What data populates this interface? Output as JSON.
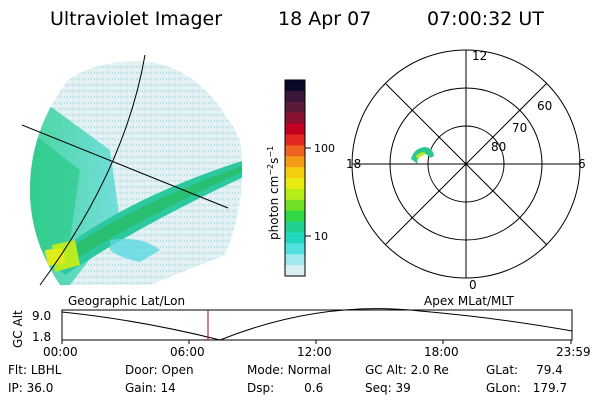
{
  "header": {
    "instrument": "Ultraviolet Imager",
    "date": "18 Apr 07",
    "time": "07:00:32 UT"
  },
  "colorbar": {
    "label": "photon cm",
    "superscript_1": "−2",
    "middle": "s",
    "superscript_2": "−1",
    "ticks": [
      "100",
      "10"
    ],
    "colors": [
      "#0a0a28",
      "#3a1638",
      "#5a1a3a",
      "#8a1030",
      "#c00020",
      "#e02820",
      "#f06020",
      "#f49c18",
      "#f4cc10",
      "#e8ec10",
      "#b8ec18",
      "#70e024",
      "#30d848",
      "#20d090",
      "#20d8c0",
      "#50e0e0",
      "#a0e8ec",
      "#d8f0f4"
    ]
  },
  "map": {
    "label": "Geographic Lat/Lon"
  },
  "polar": {
    "label": "Apex MLat/MLT",
    "mlt_labels": {
      "top": "12",
      "bottom": "0",
      "left": "18",
      "right": "6"
    },
    "lat_labels": [
      "60",
      "70",
      "80"
    ]
  },
  "altitude_plot": {
    "ylabel": "GC Alt",
    "yticks": [
      "9.0",
      "1.8"
    ],
    "xticks": [
      "00:00",
      "06:00",
      "12:00",
      "18:00",
      "23:59"
    ],
    "marker_color": "#c00000"
  },
  "info": {
    "filter": {
      "label": "Flt:",
      "value": "LBHL"
    },
    "door": {
      "label": "Door:",
      "value": "Open"
    },
    "mode": {
      "label": "Mode:",
      "value": "Normal"
    },
    "gc_alt": {
      "label": "GC Alt:",
      "value": "2.0 Re"
    },
    "glat": {
      "label": "GLat:",
      "value": "79.4"
    },
    "ip": {
      "label": "IP:",
      "value": "36.0"
    },
    "gain": {
      "label": "Gain:",
      "value": "14"
    },
    "dsp": {
      "label": "Dsp:",
      "value": "0.6"
    },
    "seq": {
      "label": "Seq:",
      "value": "39"
    },
    "glon": {
      "label": "GLon:",
      "value": "179.7"
    }
  }
}
